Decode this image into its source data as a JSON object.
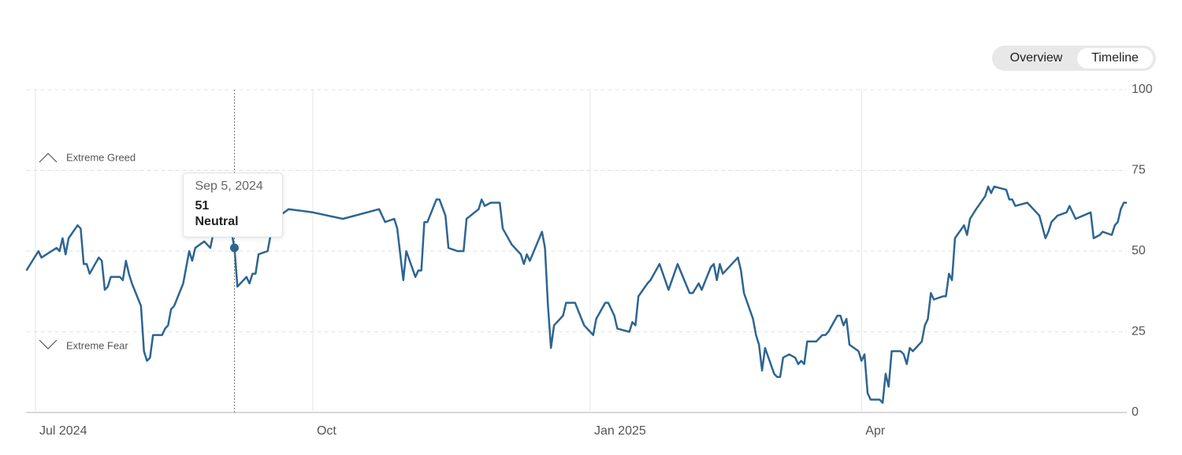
{
  "controls": {
    "buttons": [
      "Overview",
      "Timeline"
    ],
    "active": 1
  },
  "chart_data": {
    "type": "line",
    "annotations": {
      "greed": "Extreme Greed",
      "fear": "Extreme Fear"
    },
    "xlim": [
      "2024-06-28",
      "2025-06-28"
    ],
    "xticks": [
      {
        "value": "2024-07-01",
        "label": "Jul 2024"
      },
      {
        "value": "2024-10-01",
        "label": "Oct"
      },
      {
        "value": "2025-01-01",
        "label": "Jan 2025"
      },
      {
        "value": "2025-04-01",
        "label": "Apr"
      }
    ],
    "ylim": [
      0,
      100
    ],
    "yticks": [
      0,
      25,
      50,
      75,
      100
    ],
    "grid": true,
    "tooltip": {
      "x": {
        "value": "2024-09-05",
        "label": "Sep 5, 2024"
      },
      "value": 51,
      "rating": "Neutral"
    },
    "series": [
      {
        "color": "#2d6592",
        "x": [
          "2024-06-28",
          "2024-07-02",
          "2024-07-03",
          "2024-07-08",
          "2024-07-09",
          "2024-07-10",
          "2024-07-11",
          "2024-07-12",
          "2024-07-15",
          "2024-07-16",
          "2024-07-17",
          "2024-07-18",
          "2024-07-19",
          "2024-07-22",
          "2024-07-23",
          "2024-07-24",
          "2024-07-25",
          "2024-07-26",
          "2024-07-29",
          "2024-07-30",
          "2024-07-31",
          "2024-08-01",
          "2024-08-02",
          "2024-08-05",
          "2024-08-06",
          "2024-08-07",
          "2024-08-08",
          "2024-08-09",
          "2024-08-12",
          "2024-08-13",
          "2024-08-14",
          "2024-08-15",
          "2024-08-16",
          "2024-08-19",
          "2024-08-21",
          "2024-08-22",
          "2024-08-23",
          "2024-08-26",
          "2024-08-28",
          "2024-08-30",
          "2024-09-03",
          "2024-09-04",
          "2024-09-05",
          "2024-09-06",
          "2024-09-09",
          "2024-09-10",
          "2024-09-11",
          "2024-09-12",
          "2024-09-13",
          "2024-09-16",
          "2024-09-17",
          "2024-09-19",
          "2024-09-20",
          "2024-09-23",
          "2024-10-01",
          "2024-10-11",
          "2024-10-23",
          "2024-10-25",
          "2024-10-28",
          "2024-10-29",
          "2024-10-31",
          "2024-11-01",
          "2024-11-04",
          "2024-11-05",
          "2024-11-06",
          "2024-11-07",
          "2024-11-08",
          "2024-11-11",
          "2024-11-12",
          "2024-11-14",
          "2024-11-15",
          "2024-11-18",
          "2024-11-20",
          "2024-11-21",
          "2024-11-25",
          "2024-11-26",
          "2024-11-27",
          "2024-11-29",
          "2024-12-02",
          "2024-12-03",
          "2024-12-06",
          "2024-12-09",
          "2024-12-10",
          "2024-12-11",
          "2024-12-12",
          "2024-12-16",
          "2024-12-17",
          "2024-12-18",
          "2024-12-19",
          "2024-12-20",
          "2024-12-23",
          "2024-12-24",
          "2024-12-27",
          "2024-12-30",
          "2025-01-02",
          "2025-01-03",
          "2025-01-06",
          "2025-01-07",
          "2025-01-09",
          "2025-01-10",
          "2025-01-14",
          "2025-01-15",
          "2025-01-16",
          "2025-01-17",
          "2025-01-20",
          "2025-01-21",
          "2025-01-24",
          "2025-01-27",
          "2025-01-30",
          "2025-02-03",
          "2025-02-04",
          "2025-02-06",
          "2025-02-07",
          "2025-02-10",
          "2025-02-11",
          "2025-02-12",
          "2025-02-13",
          "2025-02-14",
          "2025-02-19",
          "2025-02-20",
          "2025-02-21",
          "2025-02-24",
          "2025-02-25",
          "2025-02-26",
          "2025-02-27",
          "2025-02-28",
          "2025-03-03",
          "2025-03-04",
          "2025-03-05",
          "2025-03-06",
          "2025-03-08",
          "2025-03-10",
          "2025-03-11",
          "2025-03-12",
          "2025-03-13",
          "2025-03-14",
          "2025-03-17",
          "2025-03-19",
          "2025-03-20",
          "2025-03-21",
          "2025-03-24",
          "2025-03-25",
          "2025-03-26",
          "2025-03-27",
          "2025-03-28",
          "2025-03-31",
          "2025-04-01",
          "2025-04-02",
          "2025-04-03",
          "2025-04-04",
          "2025-04-07",
          "2025-04-08",
          "2025-04-09",
          "2025-04-10",
          "2025-04-11",
          "2025-04-14",
          "2025-04-15",
          "2025-04-16",
          "2025-04-17",
          "2025-04-18",
          "2025-04-21",
          "2025-04-22",
          "2025-04-23",
          "2025-04-24",
          "2025-04-25",
          "2025-04-28",
          "2025-04-29",
          "2025-04-30",
          "2025-05-01",
          "2025-05-02",
          "2025-05-05",
          "2025-05-06",
          "2025-05-07",
          "2025-05-09",
          "2025-05-12",
          "2025-05-13",
          "2025-05-14",
          "2025-05-15",
          "2025-05-19",
          "2025-05-20",
          "2025-05-21",
          "2025-05-22",
          "2025-05-26",
          "2025-05-29",
          "2025-05-30",
          "2025-06-01",
          "2025-06-02",
          "2025-06-03",
          "2025-06-05",
          "2025-06-08",
          "2025-06-09",
          "2025-06-11",
          "2025-06-16",
          "2025-06-17",
          "2025-06-19",
          "2025-06-20",
          "2025-06-23",
          "2025-06-24",
          "2025-06-25",
          "2025-06-26",
          "2025-06-27",
          "2025-06-28"
        ],
        "values": [
          44,
          50,
          48,
          51,
          50,
          54,
          49,
          54,
          58,
          57,
          46,
          46,
          43,
          48,
          47,
          38,
          39,
          42,
          42,
          41,
          47,
          43,
          40,
          33,
          19,
          16,
          17,
          24,
          24,
          26,
          27,
          32,
          33,
          40,
          50,
          47,
          51,
          53,
          51,
          60,
          56,
          56,
          51,
          39,
          42,
          40,
          43,
          43,
          49,
          50,
          55,
          63,
          61,
          63,
          62,
          60,
          63,
          59,
          60,
          57,
          41,
          50,
          42,
          44,
          44,
          59,
          59,
          66,
          66,
          61,
          51,
          50,
          50,
          60,
          63,
          66,
          64,
          65,
          65,
          57,
          52,
          49,
          46,
          49,
          47,
          56,
          51,
          33,
          20,
          27,
          30,
          34,
          34,
          27,
          24,
          29,
          34,
          34,
          30,
          26,
          25,
          28,
          27,
          36,
          40,
          41,
          46,
          38,
          46,
          37,
          37,
          40,
          38,
          45,
          46,
          41,
          46,
          43,
          48,
          44,
          37,
          29,
          24,
          21,
          13,
          20,
          12,
          11,
          11,
          17,
          18,
          17,
          15,
          16,
          15,
          22,
          22,
          24,
          24,
          25,
          30,
          30,
          27,
          29,
          21,
          19,
          16,
          18,
          6,
          4,
          4,
          3,
          12,
          8,
          19,
          19,
          18,
          15,
          20,
          19,
          22,
          27,
          29,
          37,
          35,
          36,
          36,
          43,
          41,
          54,
          58,
          55,
          60,
          63,
          67,
          70,
          68,
          70,
          69,
          66,
          66,
          64,
          65,
          62,
          61,
          54,
          56,
          59,
          61,
          62,
          64,
          60,
          62,
          54,
          55,
          56,
          55,
          58,
          59,
          63,
          65,
          65
        ]
      }
    ]
  }
}
